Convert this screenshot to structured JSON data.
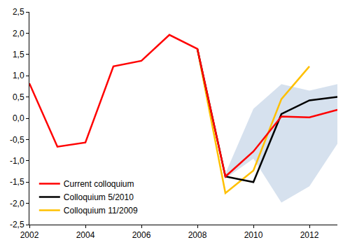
{
  "chart_data": {
    "type": "line",
    "x": [
      2002,
      2003,
      2004,
      2005,
      2006,
      2007,
      2008,
      2009,
      2010,
      2011,
      2012,
      2013
    ],
    "series": [
      {
        "name": "Current colloquium",
        "color": "#ff0000",
        "values": [
          0.82,
          -0.67,
          -0.57,
          1.22,
          1.35,
          1.96,
          1.63,
          -1.37,
          -0.78,
          0.04,
          0.02,
          0.2
        ]
      },
      {
        "name": "Colloquium 5/2010",
        "color": "#000000",
        "values": [
          null,
          null,
          null,
          null,
          null,
          null,
          1.63,
          -1.37,
          -1.5,
          0.1,
          0.42,
          0.5
        ]
      },
      {
        "name": "Colloquium 11/2009",
        "color": "#ffc000",
        "values": [
          null,
          null,
          null,
          null,
          null,
          null,
          1.63,
          -1.76,
          -1.23,
          0.45,
          1.22,
          null
        ]
      }
    ],
    "band": {
      "color": "#d6e1ee",
      "lower": [
        null,
        null,
        null,
        null,
        null,
        null,
        null,
        -1.42,
        -0.95,
        -1.98,
        -1.6,
        -0.6
      ],
      "upper": [
        null,
        null,
        null,
        null,
        null,
        null,
        null,
        -1.3,
        0.22,
        0.8,
        0.65,
        0.8
      ]
    },
    "xlim": [
      2002,
      2013
    ],
    "xticks": [
      2002,
      2004,
      2006,
      2008,
      2010,
      2012
    ],
    "ylim": [
      -2.5,
      2.5
    ],
    "yticks": [
      {
        "value": -2.5,
        "label": "-2,5"
      },
      {
        "value": -2,
        "label": "-2,0"
      },
      {
        "value": -1.5,
        "label": "-1,5"
      },
      {
        "value": -1,
        "label": "-1,0"
      },
      {
        "value": -0.5,
        "label": "-0,5"
      },
      {
        "value": 0,
        "label": "0,0"
      },
      {
        "value": 0.5,
        "label": "0,5"
      },
      {
        "value": 1,
        "label": "1,0"
      },
      {
        "value": 1.5,
        "label": "1,5"
      },
      {
        "value": 2,
        "label": "2,0"
      },
      {
        "value": 2.5,
        "label": "2,5"
      }
    ],
    "grid": false,
    "legend": "lower left"
  }
}
